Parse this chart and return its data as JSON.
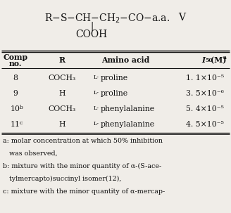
{
  "bg_color": "#f0ede8",
  "text_color": "#111111",
  "formula_line": "R-S-CH-CH₂-CO-a.a.",
  "formula_v": "V",
  "formula_bond": "|",
  "formula_cooh": "COOH",
  "col_headers_line1": [
    "Comp",
    "R",
    "Amino acid",
    "I₅₀(M)ᵃ"
  ],
  "col_headers_line2": [
    "no.",
    "",
    "",
    ""
  ],
  "rows": [
    [
      "8",
      "COCH₃",
      "proline",
      "1. 1×10⁻⁵"
    ],
    [
      "9",
      "H",
      "proline",
      "3. 5×10⁻⁶"
    ],
    [
      "10",
      "COCH₃",
      "phenylalanine",
      "5. 4×10⁻⁵"
    ],
    [
      "11",
      "H",
      "phenylalanine",
      "4. 5×10⁻⁵"
    ]
  ],
  "row_superscripts": [
    "",
    "",
    "b",
    "c"
  ],
  "footnote_lines": [
    "a: molar concentration at which 50% inhibition",
    "   was observed,",
    "b: mixture with the minor quantity of α-(S-ace-",
    "   tylmercapto)succinyl isomer(12),",
    "c: mixture with the minor quantity of α-mercap-"
  ]
}
